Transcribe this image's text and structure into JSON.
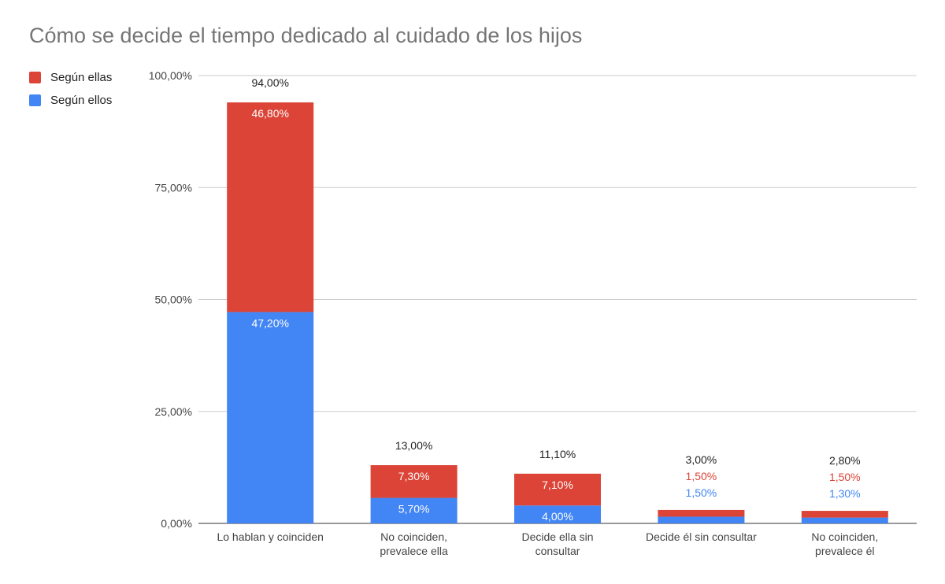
{
  "chart_data": {
    "type": "bar",
    "stacked": true,
    "title": "Cómo se decide el tiempo dedicado al cuidado de los hijos",
    "categories": [
      [
        "Lo hablan y coinciden"
      ],
      [
        "No coinciden,",
        "prevalece ella"
      ],
      [
        "Decide ella sin",
        "consultar"
      ],
      [
        "Decide él sin consultar"
      ],
      [
        "No coinciden,",
        "prevalece él"
      ]
    ],
    "series": [
      {
        "name": "Según ellos",
        "color": "#4285f4",
        "values": [
          47.2,
          5.7,
          4.0,
          1.5,
          1.3
        ],
        "labels": [
          "47,20%",
          "5,70%",
          "4,00%",
          "1,50%",
          "1,30%"
        ]
      },
      {
        "name": "Según ellas",
        "color": "#db4437",
        "values": [
          46.8,
          7.3,
          7.1,
          1.5,
          1.5
        ],
        "labels": [
          "46,80%",
          "7,30%",
          "7,10%",
          "1,50%",
          "1,50%"
        ]
      }
    ],
    "totals": [
      "94,00%",
      "13,00%",
      "11,10%",
      "3,00%",
      "2,80%"
    ],
    "ylim": [
      0,
      100
    ],
    "yticks": [
      0,
      25,
      50,
      75,
      100
    ],
    "ytick_labels": [
      "0,00%",
      "25,00%",
      "50,00%",
      "75,00%",
      "100,00%"
    ],
    "legend": [
      {
        "name": "Según ellas",
        "color": "#db4437"
      },
      {
        "name": "Según ellos",
        "color": "#4285f4"
      }
    ],
    "legend_position": "top-left",
    "grid": true
  }
}
